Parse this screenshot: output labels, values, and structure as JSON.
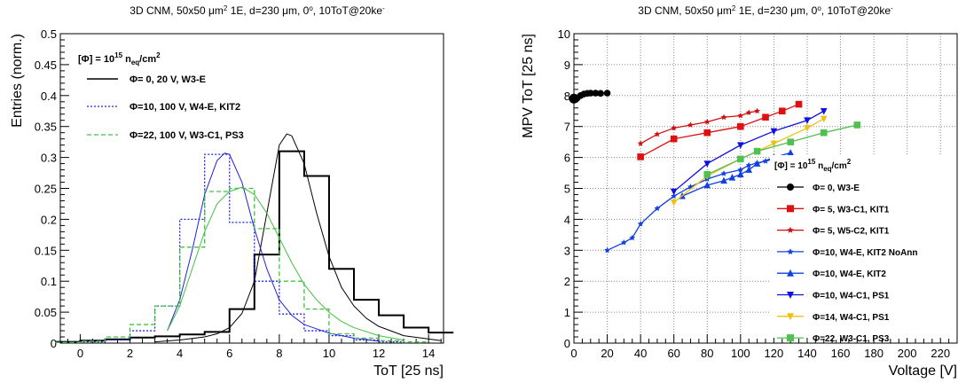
{
  "chart_data": [
    {
      "type": "line",
      "title": "3D CNM, 50x50 μm² 1E, d=230 μm, 0°, 10ToT@20ke⁻",
      "xlabel": "ToT [25 ns]",
      "ylabel": "Entries (norm.)",
      "xlim": [
        -0.8,
        14.6
      ],
      "ylim": [
        0,
        0.5
      ],
      "xticks": [
        "0",
        "2",
        "4",
        "6",
        "8",
        "10",
        "12",
        "14"
      ],
      "yticks": [
        "0",
        "0.05",
        "0.1",
        "0.15",
        "0.2",
        "0.25",
        "0.3",
        "0.35",
        "0.4",
        "0.45",
        "0.5"
      ],
      "grid": false,
      "legend_header": "[Φ] = 10¹⁵ n_eq/cm²",
      "legend_placement": "top-left",
      "series": [
        {
          "name": "Φ= 0,  20 V, W3-E",
          "color": "#000000",
          "style": "solid",
          "hist_x": [
            -0.5,
            0.5,
            1.5,
            2.5,
            3.5,
            4.5,
            5.5,
            6.5,
            7.5,
            8.5,
            9.5,
            10.5,
            11.5,
            12.5,
            13.5,
            14.5
          ],
          "hist_y": [
            0.002,
            0.004,
            0.006,
            0.009,
            0.011,
            0.014,
            0.018,
            0.055,
            0.143,
            0.31,
            0.27,
            0.12,
            0.07,
            0.045,
            0.025,
            0.017
          ],
          "fit_x": [
            3,
            4,
            5,
            5.5,
            6,
            6.5,
            7,
            7.5,
            8,
            8.3,
            8.5,
            9,
            9.5,
            10,
            10.5,
            11,
            11.5,
            12,
            13,
            14.5
          ],
          "fit_y": [
            0.002,
            0.005,
            0.01,
            0.015,
            0.025,
            0.048,
            0.1,
            0.21,
            0.32,
            0.338,
            0.335,
            0.29,
            0.21,
            0.14,
            0.09,
            0.06,
            0.04,
            0.027,
            0.012,
            0.004
          ]
        },
        {
          "name": "Φ=10, 100 V, W4-E, KIT2",
          "color": "#2020e0",
          "style": "dotted",
          "hist_x": [
            -0.5,
            0.5,
            1.5,
            2.5,
            3.5,
            4.5,
            5.5,
            6.5,
            7.5,
            8.5,
            9.5,
            10.5,
            11.5,
            12.5
          ],
          "hist_y": [
            0.001,
            0.002,
            0.005,
            0.02,
            0.06,
            0.2,
            0.305,
            0.195,
            0.1,
            0.047,
            0.02,
            0.012,
            0.005,
            0.002
          ],
          "fit_x": [
            3.5,
            4,
            4.5,
            5,
            5.5,
            5.8,
            6,
            6.5,
            7,
            7.5,
            8,
            8.5,
            9,
            10,
            11,
            12
          ],
          "fit_y": [
            0.02,
            0.07,
            0.15,
            0.24,
            0.295,
            0.307,
            0.305,
            0.26,
            0.185,
            0.12,
            0.07,
            0.045,
            0.03,
            0.016,
            0.008,
            0.003
          ]
        },
        {
          "name": "Φ=22, 100 V, W3-C1, PS3",
          "color": "#40c040",
          "style": "dashed",
          "hist_x": [
            -0.5,
            0.5,
            1.5,
            2.5,
            3.5,
            4.5,
            5.5,
            6.5,
            7.5,
            8.5,
            9.5,
            10.5,
            11.5,
            12.5,
            13.5
          ],
          "hist_y": [
            0.001,
            0.003,
            0.01,
            0.03,
            0.06,
            0.155,
            0.245,
            0.25,
            0.185,
            0.1,
            0.055,
            0.015,
            0.008,
            0.004,
            0.002
          ],
          "fit_x": [
            3.5,
            4,
            4.5,
            5,
            5.5,
            6,
            6.5,
            7,
            7.5,
            8,
            8.5,
            9,
            9.5,
            10,
            10.5,
            11,
            12,
            13
          ],
          "fit_y": [
            0.02,
            0.06,
            0.12,
            0.18,
            0.225,
            0.245,
            0.252,
            0.24,
            0.21,
            0.17,
            0.13,
            0.095,
            0.07,
            0.05,
            0.035,
            0.025,
            0.012,
            0.005
          ]
        }
      ]
    },
    {
      "type": "line",
      "title": "3D CNM, 50x50 μm² 1E, d=230 μm, 0°, 10ToT@20ke⁻",
      "xlabel": "Voltage [V]",
      "ylabel": "MPV ToT [25 ns]",
      "xlim": [
        0,
        230
      ],
      "ylim": [
        0,
        10
      ],
      "xticks": [
        "0",
        "20",
        "40",
        "60",
        "80",
        "100",
        "120",
        "140",
        "160",
        "180",
        "200",
        "220"
      ],
      "yticks": [
        "0",
        "1",
        "2",
        "3",
        "4",
        "5",
        "6",
        "7",
        "8",
        "9",
        "10"
      ],
      "grid": true,
      "legend_header": "[Φ] = 10¹⁵ n_eq/cm²",
      "legend_placement": "bottom-right",
      "series": [
        {
          "name": "Φ=  0,  W3-E",
          "color": "#000000",
          "marker": "circle",
          "x": [
            0,
            1,
            2,
            4,
            6,
            8,
            10,
            13,
            16,
            20
          ],
          "y": [
            7.9,
            7.88,
            7.92,
            8.0,
            8.05,
            8.07,
            8.08,
            8.08,
            8.07,
            8.08
          ]
        },
        {
          "name": "Φ=  5,  W3-C1,  KIT1",
          "color": "#e01010",
          "marker": "square",
          "x": [
            40,
            60,
            80,
            100,
            115,
            125,
            135
          ],
          "y": [
            6.02,
            6.6,
            6.8,
            7.0,
            7.3,
            7.5,
            7.72
          ]
        },
        {
          "name": "Φ=  5,  W5-C2,  KIT1",
          "color": "#d01010",
          "marker": "star",
          "x": [
            40,
            50,
            60,
            70,
            80,
            90,
            100,
            105,
            110
          ],
          "y": [
            6.45,
            6.75,
            6.95,
            7.05,
            7.15,
            7.3,
            7.35,
            7.45,
            7.5
          ]
        },
        {
          "name": "Φ=10,  W4-E,  KIT2 NoAnn",
          "color": "#1040e0",
          "marker": "star",
          "x": [
            20,
            30,
            35,
            40,
            50,
            60,
            70,
            80,
            90,
            100,
            105,
            110,
            115,
            120,
            125,
            130
          ],
          "y": [
            3.0,
            3.25,
            3.4,
            3.85,
            4.35,
            4.75,
            5.05,
            5.3,
            5.48,
            5.6,
            5.75,
            5.82,
            5.88,
            5.95,
            6.0,
            6.1
          ]
        },
        {
          "name": "Φ=10,  W4-E,  KIT2",
          "color": "#1040e0",
          "marker": "triangle-up",
          "x": [
            65,
            80,
            90,
            95,
            100,
            105,
            110,
            120,
            130
          ],
          "y": [
            4.75,
            5.1,
            5.25,
            5.35,
            5.45,
            5.6,
            5.8,
            6.0,
            6.15
          ]
        },
        {
          "name": "Φ=10,  W4-C1,  PS1",
          "color": "#1010e0",
          "marker": "triangle-down",
          "x": [
            60,
            80,
            100,
            120,
            140,
            150
          ],
          "y": [
            4.9,
            5.8,
            6.4,
            6.85,
            7.2,
            7.5
          ]
        },
        {
          "name": "Φ=14,  W4-C1,  PS1",
          "color": "#f0c010",
          "marker": "triangle-down",
          "x": [
            60,
            80,
            100,
            120,
            140,
            150
          ],
          "y": [
            4.55,
            5.4,
            5.95,
            6.45,
            6.95,
            7.25
          ]
        },
        {
          "name": "Φ=22,  W3-C1,  PS3",
          "color": "#50c050",
          "marker": "square",
          "x": [
            80,
            100,
            110,
            130,
            150,
            170
          ],
          "y": [
            5.45,
            5.95,
            6.2,
            6.5,
            6.8,
            7.05
          ]
        }
      ]
    }
  ]
}
